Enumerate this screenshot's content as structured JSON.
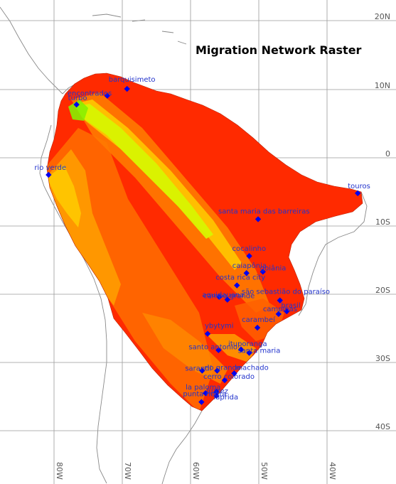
{
  "title": "Migration Network Raster",
  "latitude_labels": [
    "20N",
    "10N",
    "0",
    "10S",
    "20S",
    "30S",
    "40S"
  ],
  "longitude_labels": [
    "80W",
    "70W",
    "60W",
    "50W",
    "40W"
  ],
  "colors": {
    "raster_high": "#ff2a00",
    "raster_mid": "#ff8a00",
    "raster_low": "#ffd000",
    "corridor": "#d8f400",
    "corridor_core": "#88ee00",
    "site_marker": "#0000ee",
    "site_label": "#2233cc",
    "grid": "#9a9a9a",
    "coast": "#888888"
  },
  "sites": [
    {
      "name": "barquisimeto",
      "lon": -69.3,
      "lat": 10.1
    },
    {
      "name": "encontrados",
      "lon": -72.2,
      "lat": 9.1
    },
    {
      "name": "turbo",
      "lon": -76.7,
      "lat": 7.8
    },
    {
      "name": "rio verde",
      "lon": -80.8,
      "lat": -2.5
    },
    {
      "name": "touros",
      "lon": -35.5,
      "lat": -5.2
    },
    {
      "name": "santa maria das barreiras",
      "lon": -50.1,
      "lat": -9.0
    },
    {
      "name": "cocalinho",
      "lon": -51.4,
      "lat": -14.4
    },
    {
      "name": "caiapônia",
      "lon": -51.8,
      "lat": -16.9
    },
    {
      "name": "goiânia",
      "lon": -49.4,
      "lat": -16.7
    },
    {
      "name": "costa rica city",
      "lon": -53.2,
      "lat": -18.7
    },
    {
      "name": "aquidauana",
      "lon": -55.8,
      "lat": -20.4
    },
    {
      "name": "campo grande",
      "lon": -54.6,
      "lat": -20.8
    },
    {
      "name": "são sebastião do paraíso",
      "lon": -46.9,
      "lat": -20.9
    },
    {
      "name": "campinas",
      "lon": -47.1,
      "lat": -22.9
    },
    {
      "name": "brasil",
      "lon": -45.9,
      "lat": -22.5
    },
    {
      "name": "carambeí",
      "lon": -50.2,
      "lat": -24.9
    },
    {
      "name": "ybytymi",
      "lon": -57.5,
      "lat": -25.8
    },
    {
      "name": "santo antonio",
      "lon": -55.9,
      "lat": -28.2
    },
    {
      "name": "ituporanga",
      "lon": -52.6,
      "lat": -28.1
    },
    {
      "name": "santa maria",
      "lon": -51.4,
      "lat": -28.6
    },
    {
      "name": "sarandí",
      "lon": -58.3,
      "lat": -31.2
    },
    {
      "name": "rio grande",
      "lon": -56.1,
      "lat": -31.2
    },
    {
      "name": "machado",
      "lon": -53.6,
      "lat": -31.6
    },
    {
      "name": "cerro colorado",
      "lon": -55.0,
      "lat": -32.6
    },
    {
      "name": "la paloma",
      "lon": -57.8,
      "lat": -34.5
    },
    {
      "name": "juárez",
      "lon": -56.2,
      "lat": -34.3
    },
    {
      "name": "laprida",
      "lon": -56.2,
      "lat": -34.9
    },
    {
      "name": "punta negra",
      "lon": -58.4,
      "lat": -35.8
    }
  ],
  "visible_site_labels": [
    {
      "text": "barquisimeto",
      "site": "barquisimeto"
    },
    {
      "text": "encontrados",
      "site": "encontrados"
    },
    {
      "text": "turbo",
      "site": "turbo"
    },
    {
      "text": "rio verde",
      "site": "rio verde"
    },
    {
      "text": "touros",
      "site": "touros"
    },
    {
      "text": "santa maria das barreiras",
      "site": "santa maria das barreiras"
    },
    {
      "text": "cocalinho",
      "site": "cocalinho"
    },
    {
      "text": "caiapônia",
      "site": "caiapônia"
    },
    {
      "text": "goiânia",
      "site": "goiânia"
    },
    {
      "text": "costa rica city",
      "site": "costa rica city"
    },
    {
      "text": "aquidauana",
      "site": "aquidauana"
    },
    {
      "text": "campo grande",
      "site": "campo grande"
    },
    {
      "text": "são sebastião do paraíso",
      "site": "são sebastião do paraíso"
    },
    {
      "text": "campinas",
      "site": "campinas"
    },
    {
      "text": "brasil",
      "site": "brasil"
    },
    {
      "text": "carambeí",
      "site": "carambeí"
    },
    {
      "text": "ybytymi",
      "site": "ybytymi"
    },
    {
      "text": "santo antonio",
      "site": "santo antonio"
    },
    {
      "text": "ituporanga",
      "site": "ituporanga"
    },
    {
      "text": "santa maria",
      "site": "santa maria"
    },
    {
      "text": "sarandí",
      "site": "sarandí"
    },
    {
      "text": "rio grande",
      "site": "rio grande"
    },
    {
      "text": "machado",
      "site": "machado"
    },
    {
      "text": "cerro colorado",
      "site": "cerro colorado"
    },
    {
      "text": "la paloma",
      "site": "la paloma"
    },
    {
      "text": "juárez",
      "site": "juárez"
    },
    {
      "text": "laprida",
      "site": "laprida"
    },
    {
      "text": "punta negra",
      "site": "punta negra"
    }
  ]
}
